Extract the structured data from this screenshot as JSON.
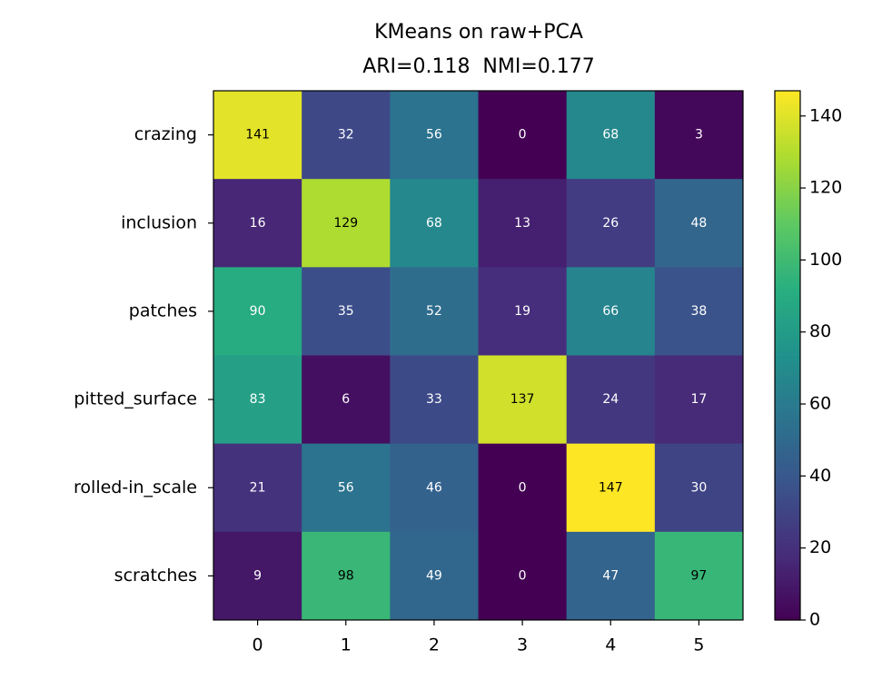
{
  "chart_data": {
    "type": "heatmap",
    "title": "KMeans on raw+PCA",
    "subtitle": "ARI=0.118  NMI=0.177",
    "y_categories": [
      "crazing",
      "inclusion",
      "patches",
      "pitted_surface",
      "rolled-in_scale",
      "scratches"
    ],
    "xticks": [
      0,
      1,
      2,
      3,
      4,
      5
    ],
    "xlim": [
      -0.5,
      5.5
    ],
    "values": [
      [
        141,
        32,
        56,
        0,
        68,
        3
      ],
      [
        16,
        129,
        68,
        13,
        26,
        48
      ],
      [
        90,
        35,
        52,
        19,
        66,
        38
      ],
      [
        83,
        6,
        33,
        137,
        24,
        17
      ],
      [
        21,
        56,
        46,
        0,
        147,
        30
      ],
      [
        9,
        98,
        49,
        0,
        47,
        97
      ]
    ],
    "colormap": "viridis",
    "clim": [
      0,
      147
    ],
    "cticks": [
      0,
      20,
      40,
      60,
      80,
      100,
      120,
      140
    ]
  }
}
